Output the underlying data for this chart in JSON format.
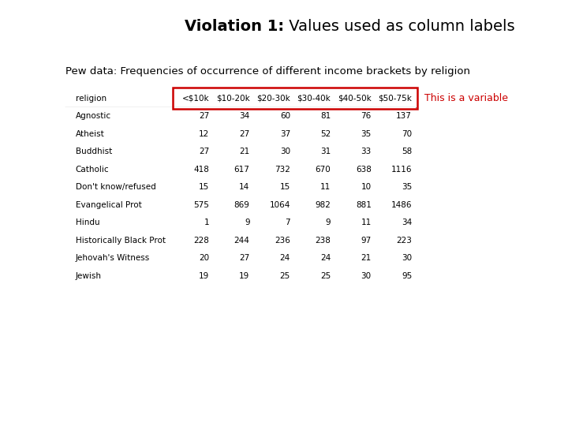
{
  "title_bold": "Violation 1:",
  "title_regular": " Values used as column labels",
  "subtitle": "Pew data: Frequencies of occurrence of different income brackets by religion",
  "columns": [
    "religion",
    "<$10k",
    "$10-20k",
    "$20-30k",
    "$30-40k",
    "$40-50k",
    "$50-75k"
  ],
  "rows": [
    [
      "Agnostic",
      "27",
      "34",
      "60",
      "81",
      "76",
      "137"
    ],
    [
      "Atheist",
      "12",
      "27",
      "37",
      "52",
      "35",
      "70"
    ],
    [
      "Buddhist",
      "27",
      "21",
      "30",
      "31",
      "33",
      "58"
    ],
    [
      "Catholic",
      "418",
      "617",
      "732",
      "670",
      "638",
      "1116"
    ],
    [
      "Don't know/refused",
      "15",
      "14",
      "15",
      "11",
      "10",
      "35"
    ],
    [
      "Evangelical Prot",
      "575",
      "869",
      "1064",
      "982",
      "881",
      "1486"
    ],
    [
      "Hindu",
      "1",
      "9",
      "7",
      "9",
      "11",
      "34"
    ],
    [
      "Historically Black Prot",
      "228",
      "244",
      "236",
      "238",
      "97",
      "223"
    ],
    [
      "Jehovah's Witness",
      "20",
      "27",
      "24",
      "24",
      "21",
      "30"
    ],
    [
      "Jewish",
      "19",
      "19",
      "25",
      "25",
      "30",
      "95"
    ]
  ],
  "annotation": "This is a variable",
  "annotation_color": "#cc0000",
  "box_color": "#cc0000",
  "background_color": "#ffffff",
  "title_fontsize": 14,
  "subtitle_fontsize": 9.5,
  "table_fontsize": 7.5
}
